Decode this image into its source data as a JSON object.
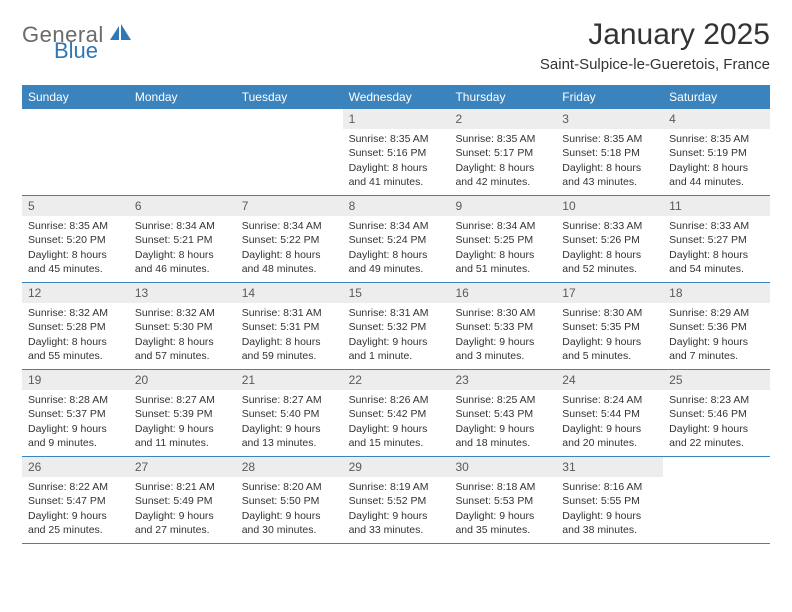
{
  "logo": {
    "text_general": "General",
    "text_blue": "Blue",
    "icon_color": "#2f78b7",
    "general_color": "#6b6b6b"
  },
  "header": {
    "month_title": "January 2025",
    "location": "Saint-Sulpice-le-Gueretois, France"
  },
  "colors": {
    "header_bg": "#3b83bd",
    "header_text": "#ffffff",
    "row_border": "#3b83bd",
    "daynum_bg": "#ededed",
    "daynum_color": "#5a5a5a",
    "body_text": "#333333",
    "page_bg": "#ffffff"
  },
  "typography": {
    "title_fontsize": 30,
    "location_fontsize": 15,
    "weekday_fontsize": 12,
    "cell_fontsize": 10.5,
    "logo_fontsize": 22
  },
  "calendar": {
    "type": "table",
    "weekdays": [
      "Sunday",
      "Monday",
      "Tuesday",
      "Wednesday",
      "Thursday",
      "Friday",
      "Saturday"
    ],
    "weeks": [
      [
        {
          "empty": true
        },
        {
          "empty": true
        },
        {
          "empty": true
        },
        {
          "day": "1",
          "sunrise": "Sunrise: 8:35 AM",
          "sunset": "Sunset: 5:16 PM",
          "dl1": "Daylight: 8 hours",
          "dl2": "and 41 minutes."
        },
        {
          "day": "2",
          "sunrise": "Sunrise: 8:35 AM",
          "sunset": "Sunset: 5:17 PM",
          "dl1": "Daylight: 8 hours",
          "dl2": "and 42 minutes."
        },
        {
          "day": "3",
          "sunrise": "Sunrise: 8:35 AM",
          "sunset": "Sunset: 5:18 PM",
          "dl1": "Daylight: 8 hours",
          "dl2": "and 43 minutes."
        },
        {
          "day": "4",
          "sunrise": "Sunrise: 8:35 AM",
          "sunset": "Sunset: 5:19 PM",
          "dl1": "Daylight: 8 hours",
          "dl2": "and 44 minutes."
        }
      ],
      [
        {
          "day": "5",
          "sunrise": "Sunrise: 8:35 AM",
          "sunset": "Sunset: 5:20 PM",
          "dl1": "Daylight: 8 hours",
          "dl2": "and 45 minutes."
        },
        {
          "day": "6",
          "sunrise": "Sunrise: 8:34 AM",
          "sunset": "Sunset: 5:21 PM",
          "dl1": "Daylight: 8 hours",
          "dl2": "and 46 minutes."
        },
        {
          "day": "7",
          "sunrise": "Sunrise: 8:34 AM",
          "sunset": "Sunset: 5:22 PM",
          "dl1": "Daylight: 8 hours",
          "dl2": "and 48 minutes."
        },
        {
          "day": "8",
          "sunrise": "Sunrise: 8:34 AM",
          "sunset": "Sunset: 5:24 PM",
          "dl1": "Daylight: 8 hours",
          "dl2": "and 49 minutes."
        },
        {
          "day": "9",
          "sunrise": "Sunrise: 8:34 AM",
          "sunset": "Sunset: 5:25 PM",
          "dl1": "Daylight: 8 hours",
          "dl2": "and 51 minutes."
        },
        {
          "day": "10",
          "sunrise": "Sunrise: 8:33 AM",
          "sunset": "Sunset: 5:26 PM",
          "dl1": "Daylight: 8 hours",
          "dl2": "and 52 minutes."
        },
        {
          "day": "11",
          "sunrise": "Sunrise: 8:33 AM",
          "sunset": "Sunset: 5:27 PM",
          "dl1": "Daylight: 8 hours",
          "dl2": "and 54 minutes."
        }
      ],
      [
        {
          "day": "12",
          "sunrise": "Sunrise: 8:32 AM",
          "sunset": "Sunset: 5:28 PM",
          "dl1": "Daylight: 8 hours",
          "dl2": "and 55 minutes."
        },
        {
          "day": "13",
          "sunrise": "Sunrise: 8:32 AM",
          "sunset": "Sunset: 5:30 PM",
          "dl1": "Daylight: 8 hours",
          "dl2": "and 57 minutes."
        },
        {
          "day": "14",
          "sunrise": "Sunrise: 8:31 AM",
          "sunset": "Sunset: 5:31 PM",
          "dl1": "Daylight: 8 hours",
          "dl2": "and 59 minutes."
        },
        {
          "day": "15",
          "sunrise": "Sunrise: 8:31 AM",
          "sunset": "Sunset: 5:32 PM",
          "dl1": "Daylight: 9 hours",
          "dl2": "and 1 minute."
        },
        {
          "day": "16",
          "sunrise": "Sunrise: 8:30 AM",
          "sunset": "Sunset: 5:33 PM",
          "dl1": "Daylight: 9 hours",
          "dl2": "and 3 minutes."
        },
        {
          "day": "17",
          "sunrise": "Sunrise: 8:30 AM",
          "sunset": "Sunset: 5:35 PM",
          "dl1": "Daylight: 9 hours",
          "dl2": "and 5 minutes."
        },
        {
          "day": "18",
          "sunrise": "Sunrise: 8:29 AM",
          "sunset": "Sunset: 5:36 PM",
          "dl1": "Daylight: 9 hours",
          "dl2": "and 7 minutes."
        }
      ],
      [
        {
          "day": "19",
          "sunrise": "Sunrise: 8:28 AM",
          "sunset": "Sunset: 5:37 PM",
          "dl1": "Daylight: 9 hours",
          "dl2": "and 9 minutes."
        },
        {
          "day": "20",
          "sunrise": "Sunrise: 8:27 AM",
          "sunset": "Sunset: 5:39 PM",
          "dl1": "Daylight: 9 hours",
          "dl2": "and 11 minutes."
        },
        {
          "day": "21",
          "sunrise": "Sunrise: 8:27 AM",
          "sunset": "Sunset: 5:40 PM",
          "dl1": "Daylight: 9 hours",
          "dl2": "and 13 minutes."
        },
        {
          "day": "22",
          "sunrise": "Sunrise: 8:26 AM",
          "sunset": "Sunset: 5:42 PM",
          "dl1": "Daylight: 9 hours",
          "dl2": "and 15 minutes."
        },
        {
          "day": "23",
          "sunrise": "Sunrise: 8:25 AM",
          "sunset": "Sunset: 5:43 PM",
          "dl1": "Daylight: 9 hours",
          "dl2": "and 18 minutes."
        },
        {
          "day": "24",
          "sunrise": "Sunrise: 8:24 AM",
          "sunset": "Sunset: 5:44 PM",
          "dl1": "Daylight: 9 hours",
          "dl2": "and 20 minutes."
        },
        {
          "day": "25",
          "sunrise": "Sunrise: 8:23 AM",
          "sunset": "Sunset: 5:46 PM",
          "dl1": "Daylight: 9 hours",
          "dl2": "and 22 minutes."
        }
      ],
      [
        {
          "day": "26",
          "sunrise": "Sunrise: 8:22 AM",
          "sunset": "Sunset: 5:47 PM",
          "dl1": "Daylight: 9 hours",
          "dl2": "and 25 minutes."
        },
        {
          "day": "27",
          "sunrise": "Sunrise: 8:21 AM",
          "sunset": "Sunset: 5:49 PM",
          "dl1": "Daylight: 9 hours",
          "dl2": "and 27 minutes."
        },
        {
          "day": "28",
          "sunrise": "Sunrise: 8:20 AM",
          "sunset": "Sunset: 5:50 PM",
          "dl1": "Daylight: 9 hours",
          "dl2": "and 30 minutes."
        },
        {
          "day": "29",
          "sunrise": "Sunrise: 8:19 AM",
          "sunset": "Sunset: 5:52 PM",
          "dl1": "Daylight: 9 hours",
          "dl2": "and 33 minutes."
        },
        {
          "day": "30",
          "sunrise": "Sunrise: 8:18 AM",
          "sunset": "Sunset: 5:53 PM",
          "dl1": "Daylight: 9 hours",
          "dl2": "and 35 minutes."
        },
        {
          "day": "31",
          "sunrise": "Sunrise: 8:16 AM",
          "sunset": "Sunset: 5:55 PM",
          "dl1": "Daylight: 9 hours",
          "dl2": "and 38 minutes."
        },
        {
          "empty": true
        }
      ]
    ]
  }
}
